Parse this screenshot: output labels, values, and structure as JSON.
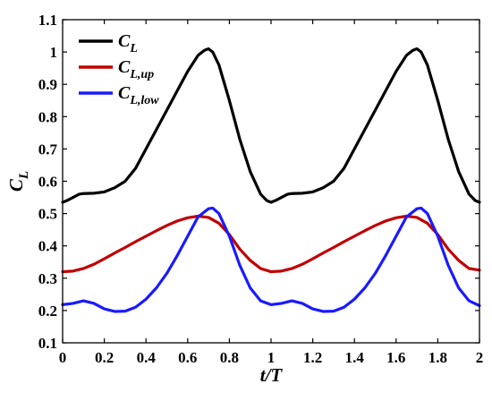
{
  "chart_data": {
    "type": "line",
    "xlabel": "t/T",
    "ylabel_main": "C",
    "ylabel_sub": "L",
    "xlim": [
      0,
      2
    ],
    "ylim": [
      0.1,
      1.1
    ],
    "xticks": [
      "0",
      "0.2",
      "0.4",
      "0.6",
      "0.8",
      "1",
      "1.2",
      "1.4",
      "1.6",
      "1.8",
      "2"
    ],
    "yticks": [
      "0.1",
      "0.2",
      "0.3",
      "0.4",
      "0.5",
      "0.6",
      "0.7",
      "0.8",
      "0.9",
      "1",
      "1.1"
    ],
    "grid": false,
    "legend_position": "top-left",
    "series": [
      {
        "name_main": "C",
        "name_sub": "L",
        "color": "#000000",
        "x": [
          0,
          0.02,
          0.05,
          0.08,
          0.1,
          0.15,
          0.2,
          0.25,
          0.3,
          0.35,
          0.4,
          0.45,
          0.5,
          0.55,
          0.6,
          0.65,
          0.68,
          0.7,
          0.72,
          0.75,
          0.8,
          0.85,
          0.9,
          0.95,
          0.98,
          1.0,
          1.02,
          1.05,
          1.08,
          1.1,
          1.15,
          1.2,
          1.25,
          1.3,
          1.35,
          1.4,
          1.45,
          1.5,
          1.55,
          1.6,
          1.65,
          1.68,
          1.7,
          1.72,
          1.75,
          1.8,
          1.85,
          1.9,
          1.95,
          1.98,
          2.0
        ],
        "values": [
          0.535,
          0.54,
          0.55,
          0.56,
          0.562,
          0.563,
          0.567,
          0.58,
          0.6,
          0.64,
          0.7,
          0.76,
          0.82,
          0.88,
          0.94,
          0.99,
          1.005,
          1.01,
          1.0,
          0.96,
          0.85,
          0.73,
          0.63,
          0.56,
          0.54,
          0.535,
          0.54,
          0.55,
          0.56,
          0.562,
          0.563,
          0.567,
          0.58,
          0.6,
          0.64,
          0.7,
          0.76,
          0.82,
          0.88,
          0.94,
          0.99,
          1.005,
          1.01,
          1.0,
          0.96,
          0.85,
          0.73,
          0.63,
          0.56,
          0.54,
          0.535
        ]
      },
      {
        "name_main": "C",
        "name_sub": "L,up",
        "color": "#c00000",
        "x": [
          0,
          0.05,
          0.1,
          0.15,
          0.2,
          0.25,
          0.3,
          0.35,
          0.4,
          0.45,
          0.5,
          0.55,
          0.6,
          0.65,
          0.7,
          0.75,
          0.8,
          0.85,
          0.9,
          0.95,
          1.0,
          1.05,
          1.1,
          1.15,
          1.2,
          1.25,
          1.3,
          1.35,
          1.4,
          1.45,
          1.5,
          1.55,
          1.6,
          1.65,
          1.7,
          1.75,
          1.8,
          1.85,
          1.9,
          1.95,
          2.0
        ],
        "values": [
          0.32,
          0.322,
          0.33,
          0.343,
          0.36,
          0.378,
          0.395,
          0.413,
          0.43,
          0.447,
          0.463,
          0.477,
          0.487,
          0.492,
          0.488,
          0.47,
          0.435,
          0.39,
          0.355,
          0.33,
          0.32,
          0.322,
          0.33,
          0.343,
          0.36,
          0.378,
          0.395,
          0.413,
          0.43,
          0.447,
          0.463,
          0.477,
          0.487,
          0.492,
          0.488,
          0.47,
          0.435,
          0.39,
          0.355,
          0.33,
          0.325
        ]
      },
      {
        "name_main": "C",
        "name_sub": "L,low",
        "color": "#1a1aff",
        "x": [
          0,
          0.05,
          0.1,
          0.15,
          0.2,
          0.25,
          0.3,
          0.35,
          0.4,
          0.45,
          0.5,
          0.55,
          0.6,
          0.65,
          0.7,
          0.72,
          0.75,
          0.8,
          0.85,
          0.9,
          0.95,
          1.0,
          1.05,
          1.1,
          1.15,
          1.2,
          1.25,
          1.3,
          1.35,
          1.4,
          1.45,
          1.5,
          1.55,
          1.6,
          1.65,
          1.7,
          1.72,
          1.75,
          1.8,
          1.85,
          1.9,
          1.95,
          2.0
        ],
        "values": [
          0.218,
          0.222,
          0.23,
          0.222,
          0.205,
          0.197,
          0.198,
          0.21,
          0.235,
          0.27,
          0.315,
          0.37,
          0.43,
          0.49,
          0.515,
          0.517,
          0.5,
          0.43,
          0.34,
          0.27,
          0.23,
          0.218,
          0.222,
          0.23,
          0.222,
          0.205,
          0.197,
          0.198,
          0.21,
          0.235,
          0.27,
          0.315,
          0.37,
          0.43,
          0.49,
          0.515,
          0.517,
          0.5,
          0.43,
          0.34,
          0.27,
          0.23,
          0.215
        ]
      }
    ]
  }
}
